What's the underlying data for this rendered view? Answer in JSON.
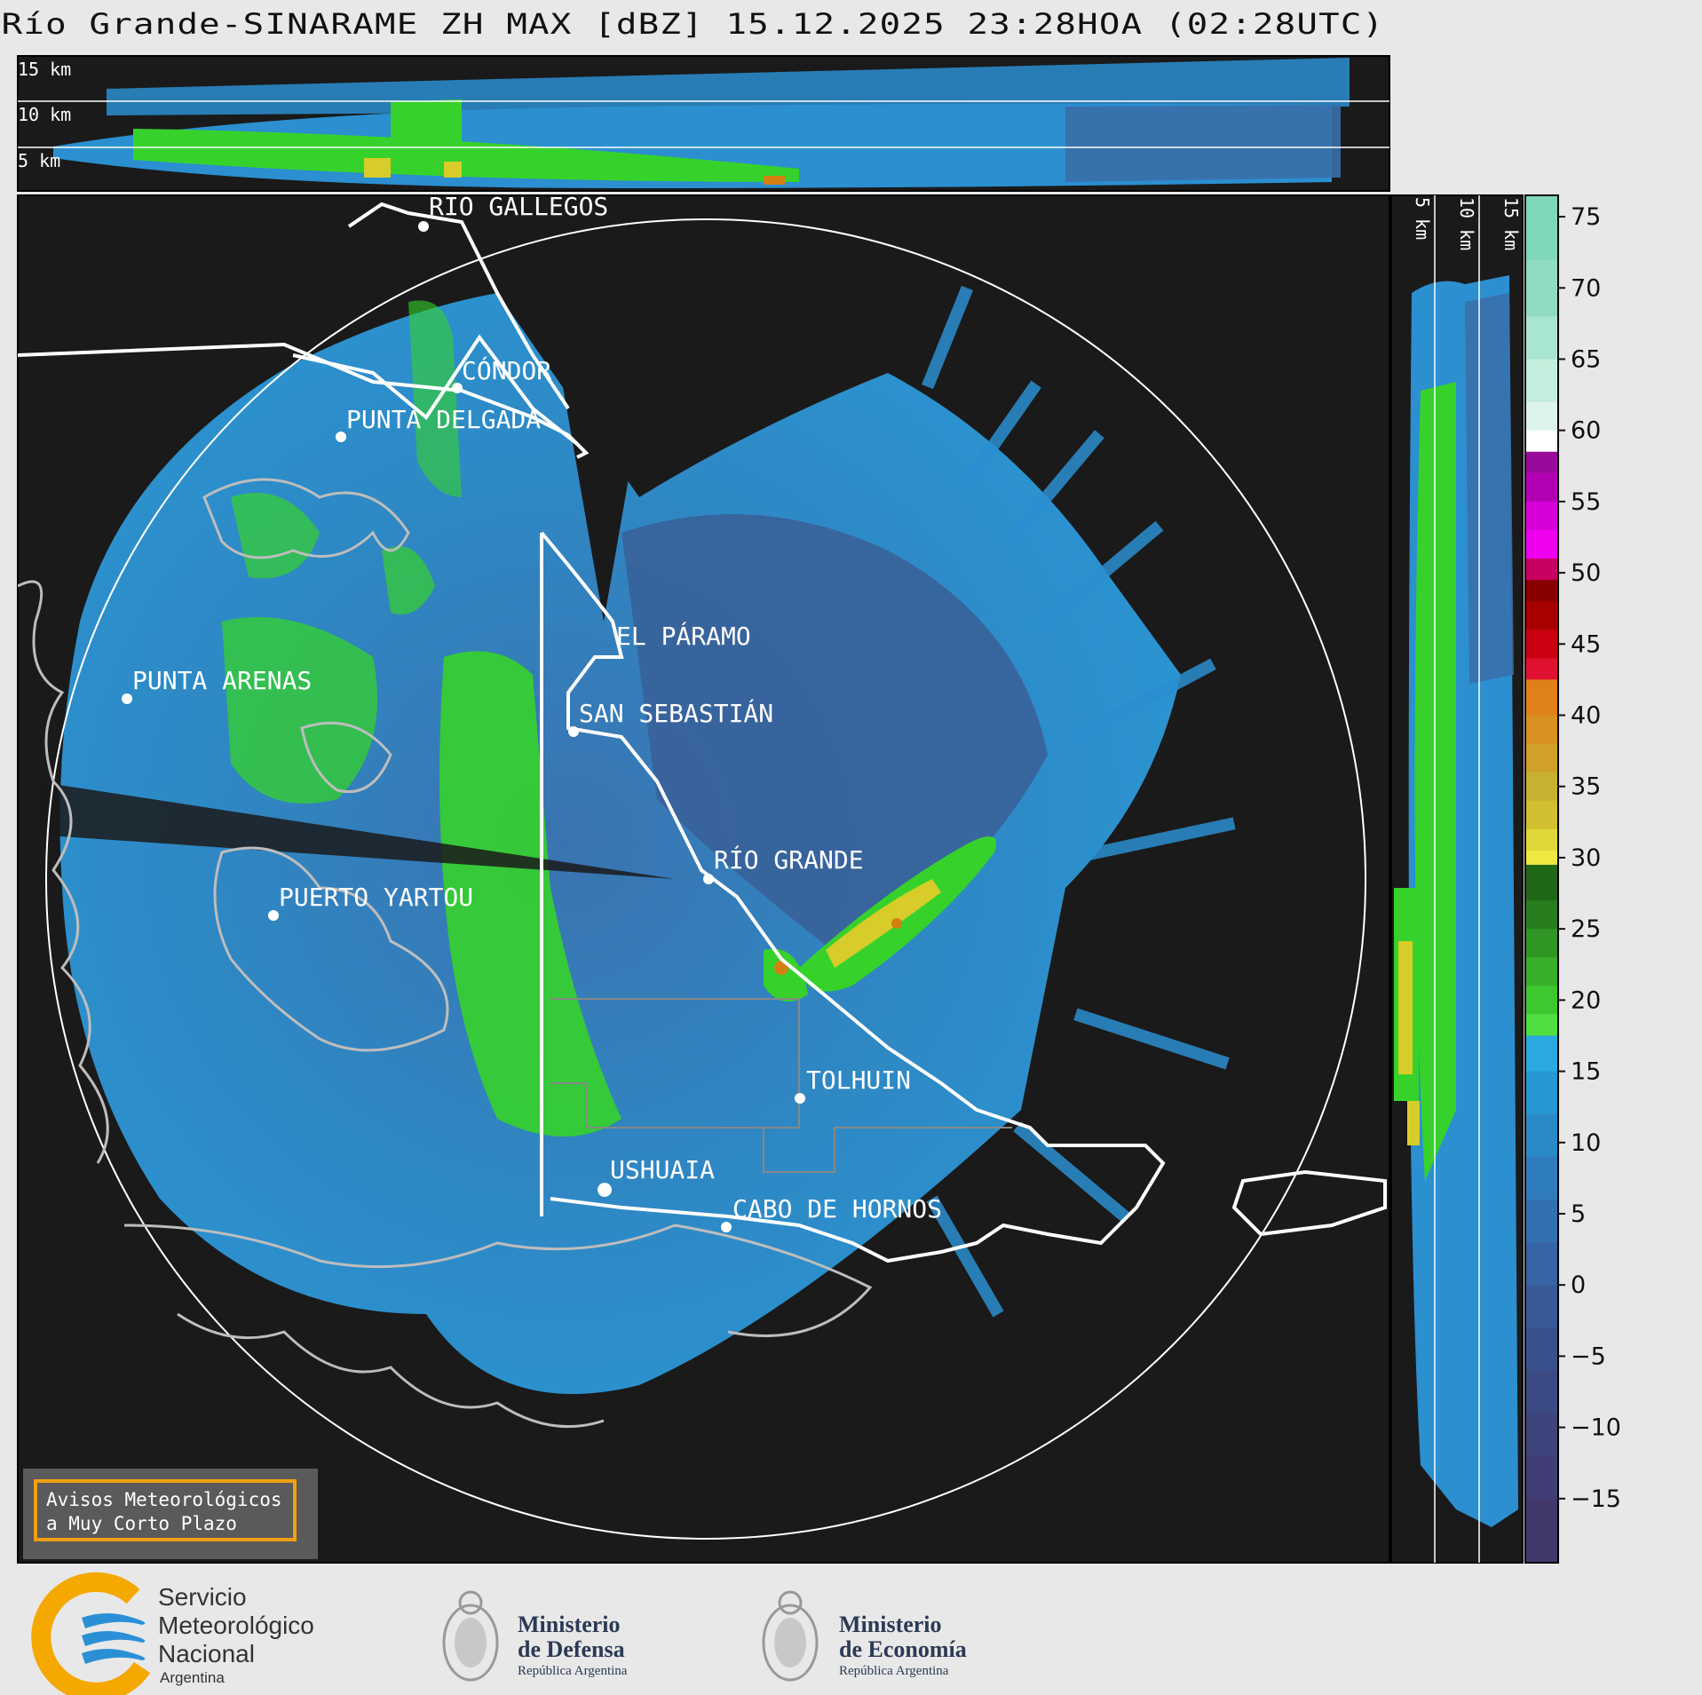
{
  "title": "Río Grande-SINARAME ZH MAX [dBZ] 15.12.2025 23:28HOA (02:28UTC)",
  "top_panel": {
    "altitude_labels": [
      "15 km",
      "10 km",
      "5 km"
    ]
  },
  "side_panel": {
    "altitude_labels": [
      "5 km",
      "10 km",
      "15 km"
    ]
  },
  "places": [
    {
      "name": "RÍO GALLEGOS"
    },
    {
      "name": "CÓNDOR"
    },
    {
      "name": "PUNTA DELGADA"
    },
    {
      "name": "EL PÁRAMO"
    },
    {
      "name": "PUNTA ARENAS"
    },
    {
      "name": "SAN SEBASTIÁN"
    },
    {
      "name": "RÍO GRANDE"
    },
    {
      "name": "PUERTO YARTOU"
    },
    {
      "name": "TOLHUIN"
    },
    {
      "name": "USHUAIA"
    },
    {
      "name": "CABO DE HORNOS"
    }
  ],
  "colorbar": {
    "unit": "dBZ",
    "ticks": [
      "75",
      "70",
      "65",
      "60",
      "55",
      "50",
      "45",
      "40",
      "35",
      "30",
      "25",
      "20",
      "15",
      "10",
      "5",
      "0",
      "−5",
      "−10",
      "−15"
    ]
  },
  "notice": {
    "line1": "Avisos Meteorológicos",
    "line2": "a Muy Corto Plazo"
  },
  "logos": {
    "smn": {
      "line1": "Servicio",
      "line2": "Meteorológico",
      "line3": "Nacional",
      "line4": "Argentina",
      "colors": [
        "#f5a800",
        "#2b8fd6"
      ]
    },
    "defensa": {
      "line1": "Ministerio",
      "line2": "de Defensa",
      "line3": "República Argentina"
    },
    "economia": {
      "line1": "Ministerio",
      "line2": "de Economía",
      "line3": "República Argentina"
    }
  },
  "colors": {
    "background": "#1a1a1a",
    "echo_weak": "#2a8ac8",
    "echo_mid": "#3a6fa8",
    "echo_green": "#36d22b",
    "echo_yellow": "#d7cc2a",
    "echo_orange": "#d47f12",
    "range_ring": "#ffffff",
    "coast": "#bdbdbd",
    "border": "#ffffff"
  }
}
